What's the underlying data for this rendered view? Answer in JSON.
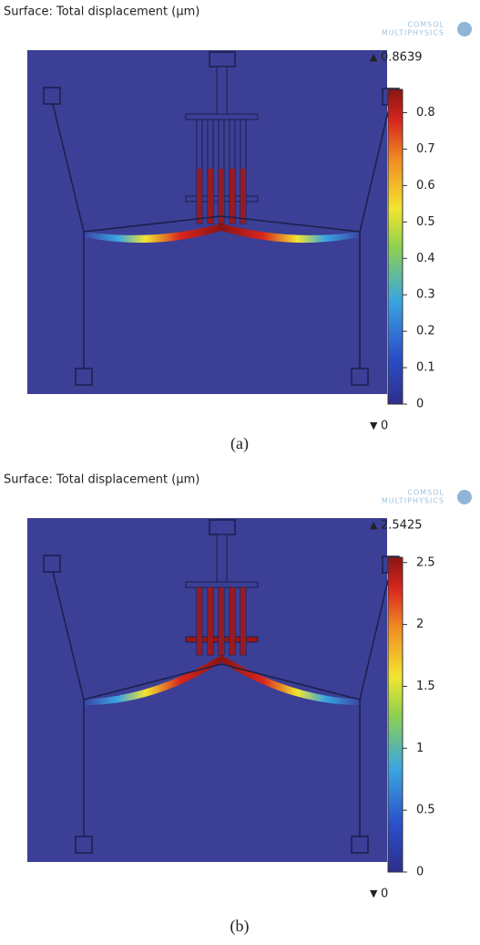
{
  "panels": [
    {
      "title": "Surface: Total displacement (µm)",
      "logo": [
        "COMSOL",
        "MULTIPHYSICS"
      ],
      "max": 0.8639,
      "min": 0,
      "ticks": [
        0,
        0.1,
        0.2,
        0.3,
        0.4,
        0.5,
        0.6,
        0.7,
        0.8
      ],
      "caption": "(a)"
    },
    {
      "title": "Surface: Total displacement (µm)",
      "logo": [
        "COMSOL",
        "MULTIPHYSICS"
      ],
      "max": 2.5425,
      "min": 0,
      "ticks": [
        0,
        0.5,
        1,
        1.5,
        2,
        2.5
      ],
      "caption": "(b)"
    }
  ]
}
